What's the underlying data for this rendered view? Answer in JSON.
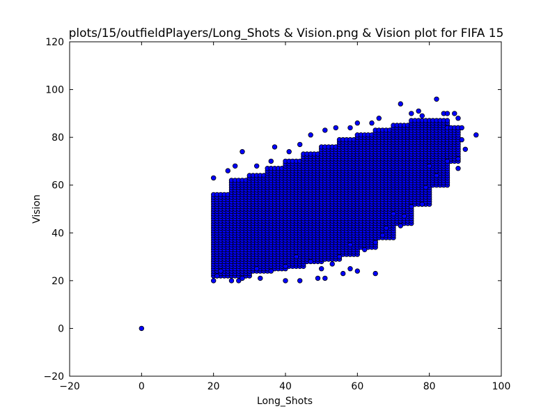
{
  "chart_data": {
    "type": "scatter",
    "title": "plots/15/outfieldPlayers/Long_Shots & Vision.png & Vision plot for FIFA 15",
    "xlabel": "Long_Shots",
    "ylabel": "Vision",
    "xlim": [
      -20,
      100
    ],
    "ylim": [
      -20,
      120
    ],
    "xticks": [
      "−20",
      "0",
      "20",
      "40",
      "60",
      "80",
      "100"
    ],
    "yticks": [
      "−20",
      "0",
      "20",
      "40",
      "60",
      "80",
      "100",
      "120"
    ],
    "grid": false,
    "legend": "none",
    "marker_color": "#0000ff",
    "marker_edge": "#000000",
    "points": [
      [
        0,
        0
      ],
      [
        20,
        20
      ],
      [
        21,
        22
      ],
      [
        22,
        24
      ],
      [
        25,
        20
      ],
      [
        27,
        20
      ],
      [
        28,
        21
      ],
      [
        33,
        21
      ],
      [
        40,
        20
      ],
      [
        44,
        20
      ],
      [
        49,
        21
      ],
      [
        51,
        21
      ],
      [
        56,
        23
      ],
      [
        58,
        25
      ],
      [
        60,
        24
      ],
      [
        65,
        23
      ],
      [
        20,
        63
      ],
      [
        24,
        66
      ],
      [
        26,
        68
      ],
      [
        28,
        74
      ],
      [
        32,
        68
      ],
      [
        36,
        70
      ],
      [
        37,
        76
      ],
      [
        41,
        74
      ],
      [
        44,
        77
      ],
      [
        47,
        81
      ],
      [
        51,
        83
      ],
      [
        54,
        84
      ],
      [
        58,
        84
      ],
      [
        60,
        86
      ],
      [
        64,
        86
      ],
      [
        66,
        88
      ],
      [
        72,
        94
      ],
      [
        75,
        90
      ],
      [
        77,
        91
      ],
      [
        78,
        89
      ],
      [
        82,
        96
      ],
      [
        84,
        90
      ],
      [
        85,
        90
      ],
      [
        87,
        90
      ],
      [
        88,
        88
      ],
      [
        88,
        84
      ],
      [
        89,
        84
      ],
      [
        89,
        79
      ],
      [
        90,
        75
      ],
      [
        93,
        81
      ],
      [
        88,
        71
      ],
      [
        85,
        70
      ],
      [
        88,
        67
      ],
      [
        80,
        68
      ],
      [
        82,
        64
      ],
      [
        79,
        59
      ],
      [
        78,
        52
      ],
      [
        75,
        51
      ],
      [
        73,
        47
      ],
      [
        72,
        43
      ],
      [
        70,
        48
      ],
      [
        68,
        42
      ],
      [
        67,
        39
      ],
      [
        65,
        36
      ],
      [
        62,
        33
      ],
      [
        58,
        35
      ],
      [
        55,
        30
      ],
      [
        53,
        27
      ],
      [
        50,
        25
      ],
      [
        47,
        28
      ],
      [
        43,
        30
      ],
      [
        40,
        26
      ],
      [
        36,
        24
      ],
      [
        32,
        25
      ]
    ],
    "fill_bands": [
      {
        "x": [
          20,
          25
        ],
        "y": [
          22,
          56
        ]
      },
      {
        "x": [
          25,
          30
        ],
        "y": [
          22,
          62
        ]
      },
      {
        "x": [
          30,
          35
        ],
        "y": [
          24,
          64
        ]
      },
      {
        "x": [
          35,
          40
        ],
        "y": [
          25,
          67
        ]
      },
      {
        "x": [
          40,
          45
        ],
        "y": [
          26,
          70
        ]
      },
      {
        "x": [
          45,
          50
        ],
        "y": [
          28,
          73
        ]
      },
      {
        "x": [
          50,
          55
        ],
        "y": [
          29,
          76
        ]
      },
      {
        "x": [
          55,
          60
        ],
        "y": [
          31,
          79
        ]
      },
      {
        "x": [
          60,
          65
        ],
        "y": [
          34,
          81
        ]
      },
      {
        "x": [
          65,
          70
        ],
        "y": [
          38,
          83
        ]
      },
      {
        "x": [
          70,
          75
        ],
        "y": [
          44,
          85
        ]
      },
      {
        "x": [
          75,
          80
        ],
        "y": [
          52,
          87
        ]
      },
      {
        "x": [
          80,
          85
        ],
        "y": [
          60,
          87
        ]
      },
      {
        "x": [
          85,
          88
        ],
        "y": [
          70,
          84
        ]
      }
    ]
  }
}
